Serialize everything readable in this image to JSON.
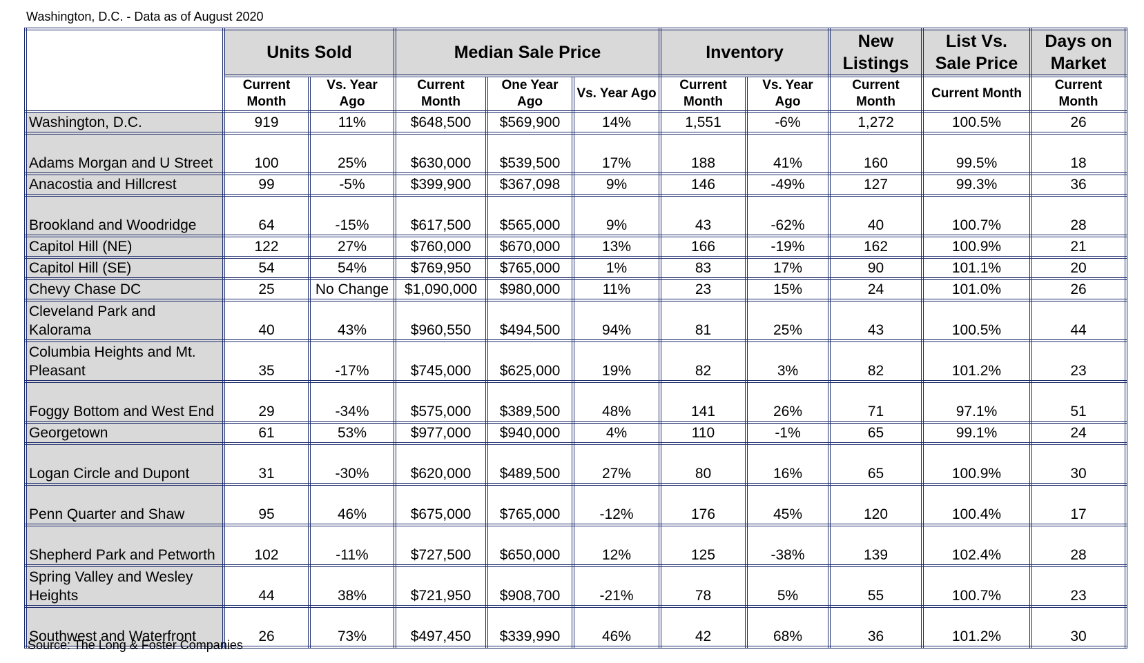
{
  "header": {
    "title": "Washington, D.C. - Data as of August 2020"
  },
  "table": {
    "groups": [
      "Units Sold",
      "Median Sale Price",
      "Inventory",
      "New Listings",
      "List Vs. Sale Price",
      "Days on Market"
    ],
    "subheaders": [
      "Current Month",
      "Vs. Year Ago",
      "Current Month",
      "One Year Ago",
      "Vs. Year Ago",
      "Current Month",
      "Vs. Year Ago",
      "Current Month",
      "Current Month",
      "Current Month"
    ],
    "rows": [
      [
        "Washington, D.C.",
        "919",
        "11%",
        "$648,500",
        "$569,900",
        "14%",
        "1,551",
        "-6%",
        "1,272",
        "100.5%",
        "26"
      ],
      [
        "Adams Morgan and U Street",
        "100",
        "25%",
        "$630,000",
        "$539,500",
        "17%",
        "188",
        "41%",
        "160",
        "99.5%",
        "18"
      ],
      [
        "Anacostia and Hillcrest",
        "99",
        "-5%",
        "$399,900",
        "$367,098",
        "9%",
        "146",
        "-49%",
        "127",
        "99.3%",
        "36"
      ],
      [
        "Brookland and Woodridge",
        "64",
        "-15%",
        "$617,500",
        "$565,000",
        "9%",
        "43",
        "-62%",
        "40",
        "100.7%",
        "28"
      ],
      [
        "Capitol Hill (NE)",
        "122",
        "27%",
        "$760,000",
        "$670,000",
        "13%",
        "166",
        "-19%",
        "162",
        "100.9%",
        "21"
      ],
      [
        "Capitol Hill (SE)",
        "54",
        "54%",
        "$769,950",
        "$765,000",
        "1%",
        "83",
        "17%",
        "90",
        "101.1%",
        "20"
      ],
      [
        "Chevy Chase DC",
        "25",
        "No Change",
        "$1,090,000",
        "$980,000",
        "11%",
        "23",
        "15%",
        "24",
        "101.0%",
        "26"
      ],
      [
        "Cleveland Park and Kalorama",
        "40",
        "43%",
        "$960,550",
        "$494,500",
        "94%",
        "81",
        "25%",
        "43",
        "100.5%",
        "44"
      ],
      [
        "Columbia Heights and Mt. Pleasant",
        "35",
        "-17%",
        "$745,000",
        "$625,000",
        "19%",
        "82",
        "3%",
        "82",
        "101.2%",
        "23"
      ],
      [
        "Foggy Bottom and West End",
        "29",
        "-34%",
        "$575,000",
        "$389,500",
        "48%",
        "141",
        "26%",
        "71",
        "97.1%",
        "51"
      ],
      [
        "Georgetown",
        "61",
        "53%",
        "$977,000",
        "$940,000",
        "4%",
        "110",
        "-1%",
        "65",
        "99.1%",
        "24"
      ],
      [
        "Logan Circle and Dupont",
        "31",
        "-30%",
        "$620,000",
        "$489,500",
        "27%",
        "80",
        "16%",
        "65",
        "100.9%",
        "30"
      ],
      [
        "Penn Quarter and Shaw",
        "95",
        "46%",
        "$675,000",
        "$765,000",
        "-12%",
        "176",
        "45%",
        "120",
        "100.4%",
        "17"
      ],
      [
        "Shepherd Park and Petworth",
        "102",
        "-11%",
        "$727,500",
        "$650,000",
        "12%",
        "125",
        "-38%",
        "139",
        "102.4%",
        "28"
      ],
      [
        "Spring Valley and Wesley Heights",
        "44",
        "38%",
        "$721,950",
        "$908,700",
        "-21%",
        "78",
        "5%",
        "55",
        "100.7%",
        "23"
      ],
      [
        "Southwest and Waterfront",
        "26",
        "73%",
        "$497,450",
        "$339,990",
        "46%",
        "42",
        "68%",
        "36",
        "101.2%",
        "30"
      ]
    ]
  },
  "footer": {
    "source": "Source: The Long & Foster Companies"
  }
}
